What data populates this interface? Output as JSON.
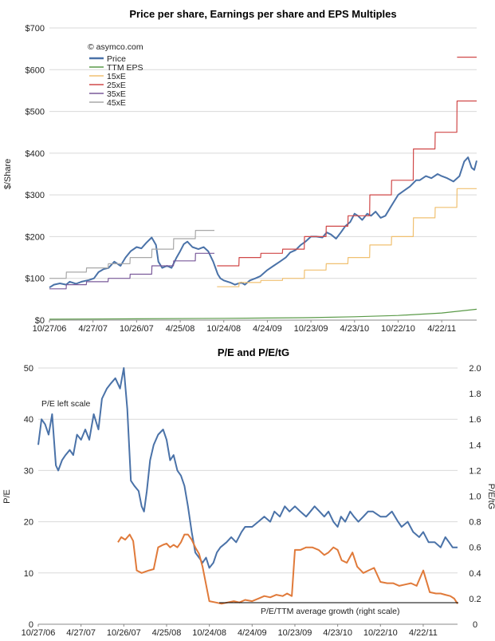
{
  "colors": {
    "price": "#4a72a8",
    "ttm_eps": "#5a9a48",
    "m15": "#f0c070",
    "m25": "#d04848",
    "m35": "#7a5a9a",
    "m45": "#a8a8a8",
    "pe": "#4a72a8",
    "petg": "#e07a3a"
  },
  "chart_data": [
    {
      "type": "line",
      "title": "Price per share, Earnings per share and EPS Multiples",
      "ylabel": "$/Share",
      "xlabel": "",
      "annotation": "© asymco.com",
      "ylim": [
        0,
        700
      ],
      "xlim": [
        "2006-10-27",
        "2011-09-15"
      ],
      "y_ticks": [
        "$0",
        "$100",
        "$200",
        "$300",
        "$400",
        "$500",
        "$600",
        "$700"
      ],
      "x_ticks": [
        {
          "date": "2006-10-27",
          "label": "10/27/06"
        },
        {
          "date": "2007-04-27",
          "label": "4/27/07"
        },
        {
          "date": "2007-10-26",
          "label": "10/26/07"
        },
        {
          "date": "2008-04-25",
          "label": "4/25/08"
        },
        {
          "date": "2008-10-24",
          "label": "10/24/08"
        },
        {
          "date": "2009-04-24",
          "label": "4/24/09"
        },
        {
          "date": "2009-10-23",
          "label": "10/23/09"
        },
        {
          "date": "2010-04-23",
          "label": "4/23/10"
        },
        {
          "date": "2010-10-22",
          "label": "10/22/10"
        },
        {
          "date": "2011-04-22",
          "label": "4/22/11"
        }
      ],
      "grid": true,
      "legend_position": "top-left",
      "series": [
        {
          "name": "Price",
          "x": [
            "2006-10-27",
            "2006-11-15",
            "2006-12-10",
            "2007-01-05",
            "2007-01-20",
            "2007-02-15",
            "2007-03-10",
            "2007-04-10",
            "2007-05-01",
            "2007-05-20",
            "2007-06-10",
            "2007-07-01",
            "2007-07-25",
            "2007-08-20",
            "2007-09-10",
            "2007-10-01",
            "2007-10-26",
            "2007-11-15",
            "2007-12-05",
            "2007-12-28",
            "2008-01-15",
            "2008-01-25",
            "2008-02-10",
            "2008-03-01",
            "2008-03-20",
            "2008-04-10",
            "2008-04-25",
            "2008-05-10",
            "2008-05-25",
            "2008-06-15",
            "2008-07-10",
            "2008-08-01",
            "2008-08-20",
            "2008-09-10",
            "2008-09-29",
            "2008-10-10",
            "2008-10-24",
            "2008-11-20",
            "2008-12-10",
            "2009-01-05",
            "2009-01-20",
            "2009-02-10",
            "2009-03-05",
            "2009-03-25",
            "2009-04-24",
            "2009-05-20",
            "2009-06-15",
            "2009-07-10",
            "2009-07-28",
            "2009-08-20",
            "2009-09-10",
            "2009-09-30",
            "2009-10-23",
            "2009-11-15",
            "2009-12-10",
            "2009-12-28",
            "2010-01-15",
            "2010-02-05",
            "2010-02-25",
            "2010-03-15",
            "2010-04-05",
            "2010-04-23",
            "2010-05-07",
            "2010-05-25",
            "2010-06-15",
            "2010-07-01",
            "2010-07-20",
            "2010-08-10",
            "2010-08-30",
            "2010-09-20",
            "2010-10-22",
            "2010-11-15",
            "2010-12-10",
            "2011-01-05",
            "2011-01-20",
            "2011-02-15",
            "2011-03-10",
            "2011-04-05",
            "2011-04-22",
            "2011-05-15",
            "2011-06-10",
            "2011-07-05",
            "2011-07-25",
            "2011-08-10",
            "2011-08-25",
            "2011-09-05",
            "2011-09-15"
          ],
          "y": [
            78,
            85,
            88,
            85,
            92,
            87,
            92,
            96,
            100,
            115,
            122,
            125,
            140,
            130,
            150,
            165,
            175,
            172,
            185,
            198,
            180,
            140,
            125,
            130,
            125,
            150,
            165,
            182,
            188,
            175,
            170,
            175,
            165,
            140,
            110,
            100,
            95,
            90,
            85,
            90,
            85,
            95,
            100,
            105,
            120,
            130,
            140,
            150,
            162,
            168,
            180,
            188,
            200,
            200,
            198,
            210,
            205,
            195,
            210,
            225,
            235,
            255,
            250,
            240,
            255,
            250,
            260,
            245,
            250,
            270,
            300,
            310,
            320,
            335,
            335,
            345,
            340,
            350,
            345,
            340,
            332,
            345,
            380,
            390,
            365,
            360,
            382
          ]
        },
        {
          "name": "TTM EPS",
          "x": [
            "2006-10-27",
            "2007-10-26",
            "2008-10-24",
            "2009-04-24",
            "2009-10-23",
            "2010-04-23",
            "2010-10-22",
            "2011-04-22",
            "2011-09-15"
          ],
          "y": [
            2.2,
            3.0,
            4.2,
            5.0,
            6.0,
            8.0,
            11.0,
            17.0,
            26.0
          ]
        },
        {
          "name": "15xE",
          "x": [
            "2008-09-26",
            "2008-12-26",
            "2008-12-27",
            "2009-03-27",
            "2009-03-28",
            "2009-06-26",
            "2009-06-27",
            "2009-09-25",
            "2009-09-26",
            "2009-12-25",
            "2009-12-26",
            "2010-03-26",
            "2010-03-27",
            "2010-06-25",
            "2010-06-26",
            "2010-09-24",
            "2010-09-25",
            "2010-12-24",
            "2010-12-25",
            "2011-03-25",
            "2011-03-26",
            "2011-06-24",
            "2011-06-25",
            "2011-09-15"
          ],
          "y": [
            80,
            80,
            90,
            90,
            95,
            95,
            100,
            100,
            120,
            120,
            135,
            135,
            150,
            150,
            180,
            180,
            200,
            200,
            245,
            245,
            270,
            270,
            315,
            315
          ]
        },
        {
          "name": "25xE",
          "x": [
            "2008-09-26",
            "2008-12-26",
            "2008-12-27",
            "2009-03-27",
            "2009-03-28",
            "2009-06-26",
            "2009-06-27",
            "2009-09-25",
            "2009-09-26",
            "2009-12-25",
            "2009-12-26",
            "2010-03-26",
            "2010-03-27",
            "2010-06-25",
            "2010-06-26",
            "2010-09-24",
            "2010-09-25",
            "2010-12-24",
            "2010-12-25",
            "2011-03-25",
            "2011-03-26",
            "2011-06-24",
            "2011-06-25",
            "2011-09-15"
          ],
          "y": [
            130,
            130,
            150,
            150,
            160,
            160,
            170,
            170,
            200,
            200,
            225,
            225,
            250,
            250,
            300,
            300,
            335,
            335,
            410,
            410,
            450,
            450,
            525,
            525
          ]
        },
        {
          "name": "35xE",
          "x": [
            "2006-10-27",
            "2007-01-05",
            "2007-01-06",
            "2007-03-30",
            "2007-03-31",
            "2007-06-29",
            "2007-06-30",
            "2007-09-28",
            "2007-09-29",
            "2007-12-28",
            "2007-12-29",
            "2008-03-28",
            "2008-03-29",
            "2008-06-27",
            "2008-06-28",
            "2008-09-15"
          ],
          "y": [
            75,
            75,
            85,
            85,
            92,
            92,
            100,
            100,
            110,
            110,
            130,
            130,
            142,
            142,
            160,
            160
          ]
        },
        {
          "name": "45xE",
          "x": [
            "2006-10-27",
            "2007-01-05",
            "2007-01-06",
            "2007-03-30",
            "2007-03-31",
            "2007-06-29",
            "2007-06-30",
            "2007-09-28",
            "2007-09-29",
            "2007-12-28",
            "2007-12-29",
            "2008-03-28",
            "2008-03-29",
            "2008-06-27",
            "2008-06-28",
            "2008-09-15"
          ],
          "y": [
            100,
            100,
            115,
            115,
            125,
            125,
            135,
            135,
            150,
            150,
            170,
            170,
            195,
            195,
            215,
            215
          ]
        }
      ],
      "extra_lines": [
        {
          "series": "25xE",
          "x": [
            "2011-06-25",
            "2011-09-15"
          ],
          "y": [
            630,
            630
          ]
        }
      ]
    },
    {
      "type": "line",
      "title": "P/E and P/E/tG",
      "ylabel": "P/E",
      "y2label": "P/E/tG",
      "xlabel": "",
      "ylim": [
        0,
        50
      ],
      "y2lim": [
        0,
        2.0
      ],
      "xlim": [
        "2006-10-27",
        "2011-09-15"
      ],
      "y_ticks": [
        "0",
        "10",
        "20",
        "30",
        "40",
        "50"
      ],
      "y2_ticks": [
        "0",
        "0.2",
        "0.4",
        "0.6",
        "0.8",
        "1.0",
        "1.2",
        "1.4",
        "1.6",
        "1.8",
        "2.0"
      ],
      "x_ticks": [
        {
          "date": "2006-10-27",
          "label": "10/27/06"
        },
        {
          "date": "2007-04-27",
          "label": "4/27/07"
        },
        {
          "date": "2007-10-26",
          "label": "10/26/07"
        },
        {
          "date": "2008-04-25",
          "label": "4/25/08"
        },
        {
          "date": "2008-10-24",
          "label": "10/24/08"
        },
        {
          "date": "2009-04-24",
          "label": "4/24/09"
        },
        {
          "date": "2009-10-23",
          "label": "10/23/09"
        },
        {
          "date": "2010-04-23",
          "label": "4/23/10"
        },
        {
          "date": "2010-10-22",
          "label": "10/22/10"
        },
        {
          "date": "2011-04-22",
          "label": "4/22/11"
        }
      ],
      "grid": true,
      "annotations": [
        "P/E left scale",
        "P/E/TTM average growth (right scale)"
      ],
      "series": [
        {
          "name": "P/E",
          "axis": "left",
          "x": [
            "2006-10-27",
            "2006-11-10",
            "2006-11-25",
            "2006-12-10",
            "2006-12-25",
            "2007-01-10",
            "2007-01-20",
            "2007-02-05",
            "2007-02-20",
            "2007-03-10",
            "2007-03-25",
            "2007-04-10",
            "2007-04-27",
            "2007-05-15",
            "2007-06-01",
            "2007-06-20",
            "2007-07-10",
            "2007-07-25",
            "2007-08-15",
            "2007-09-01",
            "2007-09-20",
            "2007-10-10",
            "2007-10-26",
            "2007-11-10",
            "2007-11-25",
            "2007-12-10",
            "2007-12-28",
            "2008-01-10",
            "2008-01-20",
            "2008-02-01",
            "2008-02-15",
            "2008-03-01",
            "2008-03-20",
            "2008-04-10",
            "2008-04-25",
            "2008-05-10",
            "2008-05-25",
            "2008-06-10",
            "2008-06-25",
            "2008-07-10",
            "2008-07-25",
            "2008-08-10",
            "2008-08-25",
            "2008-09-10",
            "2008-09-25",
            "2008-10-10",
            "2008-10-24",
            "2008-11-10",
            "2008-11-25",
            "2008-12-10",
            "2009-01-05",
            "2009-01-25",
            "2009-02-15",
            "2009-03-10",
            "2009-03-25",
            "2009-04-24",
            "2009-05-20",
            "2009-06-15",
            "2009-07-10",
            "2009-07-28",
            "2009-08-20",
            "2009-09-10",
            "2009-09-30",
            "2009-10-23",
            "2009-11-15",
            "2009-12-10",
            "2009-12-28",
            "2010-01-15",
            "2010-02-05",
            "2010-02-25",
            "2010-03-15",
            "2010-04-05",
            "2010-04-23",
            "2010-05-07",
            "2010-05-25",
            "2010-06-15",
            "2010-07-01",
            "2010-07-20",
            "2010-08-10",
            "2010-08-30",
            "2010-09-20",
            "2010-10-22",
            "2010-11-15",
            "2010-12-10",
            "2011-01-05",
            "2011-01-20",
            "2011-02-15",
            "2011-03-10",
            "2011-04-05",
            "2011-04-22",
            "2011-05-15",
            "2011-06-10",
            "2011-07-05",
            "2011-07-25",
            "2011-08-10",
            "2011-08-25",
            "2011-09-05",
            "2011-09-15"
          ],
          "y": [
            35,
            40,
            39,
            37,
            41,
            31,
            30,
            32,
            33,
            34,
            33,
            37,
            36,
            38,
            36,
            41,
            38,
            44,
            46,
            47,
            48,
            46,
            50,
            42,
            28,
            27,
            26,
            23,
            22,
            26,
            32,
            35,
            37,
            38,
            36,
            32,
            33,
            30,
            29,
            27,
            23,
            18,
            14,
            13,
            12,
            13,
            11,
            12,
            14,
            15,
            16,
            17,
            16,
            18,
            19,
            19,
            20,
            21,
            20,
            22,
            21,
            23,
            22,
            23,
            22,
            21,
            22,
            23,
            22,
            21,
            22,
            20,
            19,
            21,
            20,
            22,
            21,
            20,
            21,
            22,
            22,
            21,
            21,
            22,
            20,
            19,
            20,
            18,
            17,
            18,
            16,
            16,
            15,
            17,
            16,
            15,
            15,
            15
          ]
        },
        {
          "name": "P/E/tG",
          "axis": "right",
          "x": [
            "2007-10-01",
            "2007-10-15",
            "2007-11-01",
            "2007-11-20",
            "2007-12-05",
            "2007-12-20",
            "2008-01-10",
            "2008-01-25",
            "2008-02-10",
            "2008-03-01",
            "2008-03-20",
            "2008-04-10",
            "2008-04-25",
            "2008-05-10",
            "2008-05-25",
            "2008-06-10",
            "2008-06-25",
            "2008-07-10",
            "2008-07-25",
            "2008-08-10",
            "2008-08-25",
            "2008-09-10",
            "2008-09-25",
            "2008-10-24",
            "2008-11-20",
            "2008-12-15",
            "2009-01-10",
            "2009-02-05",
            "2009-03-01",
            "2009-03-25",
            "2009-04-24",
            "2009-05-20",
            "2009-06-15",
            "2009-07-10",
            "2009-08-05",
            "2009-09-01",
            "2009-09-20",
            "2009-10-10",
            "2009-10-23",
            "2009-11-15",
            "2009-12-10",
            "2010-01-05",
            "2010-02-01",
            "2010-02-25",
            "2010-03-15",
            "2010-04-05",
            "2010-04-23",
            "2010-05-10",
            "2010-06-01",
            "2010-06-25",
            "2010-07-15",
            "2010-08-10",
            "2010-09-01",
            "2010-09-25",
            "2010-10-22",
            "2010-11-20",
            "2010-12-15",
            "2011-01-10",
            "2011-02-05",
            "2011-03-01",
            "2011-03-25",
            "2011-04-22",
            "2011-05-20",
            "2011-06-15",
            "2011-07-05",
            "2011-07-25",
            "2011-08-15",
            "2011-09-01",
            "2011-09-15"
          ],
          "y": [
            0.64,
            0.68,
            0.66,
            0.7,
            0.65,
            0.42,
            0.4,
            0.41,
            0.42,
            0.43,
            0.6,
            0.62,
            0.63,
            0.6,
            0.62,
            0.6,
            0.64,
            0.7,
            0.7,
            0.66,
            0.6,
            0.55,
            0.45,
            0.18,
            0.17,
            0.16,
            0.17,
            0.18,
            0.17,
            0.19,
            0.18,
            0.2,
            0.22,
            0.21,
            0.23,
            0.22,
            0.24,
            0.22,
            0.58,
            0.58,
            0.6,
            0.6,
            0.58,
            0.54,
            0.56,
            0.6,
            0.58,
            0.5,
            0.48,
            0.56,
            0.45,
            0.4,
            0.42,
            0.44,
            0.33,
            0.32,
            0.32,
            0.3,
            0.31,
            0.32,
            0.3,
            0.42,
            0.25,
            0.24,
            0.24,
            0.23,
            0.22,
            0.2,
            0.16
          ]
        }
      ]
    }
  ]
}
